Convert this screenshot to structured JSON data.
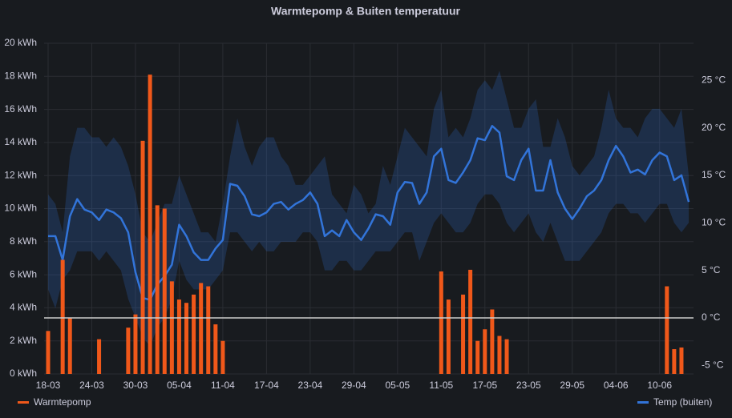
{
  "chart_data": {
    "type": "bar",
    "title": "Warmtepomp & Buiten temperatuur",
    "categories": [
      "18-03",
      null,
      null,
      null,
      null,
      null,
      "24-03",
      null,
      null,
      null,
      null,
      null,
      "30-03",
      null,
      null,
      null,
      null,
      null,
      "05-04",
      null,
      null,
      null,
      null,
      null,
      "11-04",
      null,
      null,
      null,
      null,
      null,
      "17-04",
      null,
      null,
      null,
      null,
      null,
      "23-04",
      null,
      null,
      null,
      null,
      null,
      "29-04",
      null,
      null,
      null,
      null,
      null,
      "05-05",
      null,
      null,
      null,
      null,
      null,
      "11-05",
      null,
      null,
      null,
      null,
      null,
      "17-05",
      null,
      null,
      null,
      null,
      null,
      "23-05",
      null,
      null,
      null,
      null,
      null,
      "29-05",
      null,
      null,
      null,
      null,
      null,
      "04-06",
      null,
      null,
      null,
      null,
      null,
      "10-06",
      null,
      null,
      null,
      null
    ],
    "series": [
      {
        "name": "Warmtepomp",
        "color": "#f0581a",
        "type": "bar",
        "values": [
          2.6,
          0,
          6.9,
          3.4,
          0,
          0,
          0,
          2.1,
          0,
          0,
          0,
          2.8,
          3.6,
          14.1,
          18.1,
          10.2,
          10.0,
          5.6,
          4.5,
          4.3,
          4.8,
          5.5,
          5.3,
          3.0,
          2.0,
          0,
          0,
          0,
          0,
          0,
          0,
          0,
          0,
          0,
          0,
          0,
          0,
          0,
          0,
          0,
          0,
          0,
          0,
          0,
          0,
          0,
          0,
          0,
          0,
          0,
          0,
          0,
          0,
          0,
          6.2,
          4.5,
          0,
          4.8,
          6.3,
          2.0,
          2.7,
          3.9,
          2.3,
          2.1,
          0,
          0,
          0,
          0,
          0,
          0,
          0,
          0,
          0,
          0,
          0,
          0,
          0,
          0,
          0,
          0,
          0,
          0,
          0,
          0,
          0,
          5.3,
          1.5,
          1.6,
          0
        ]
      },
      {
        "name": "Temp (buiten)",
        "color": "#3274d9",
        "type": "line",
        "axis": "y2",
        "values": [
          8.6,
          8.6,
          6.1,
          10.7,
          12.5,
          11.4,
          11.1,
          10.3,
          11.4,
          11.1,
          10.5,
          9.0,
          4.8,
          2.1,
          1.9,
          3.5,
          4.4,
          5.6,
          9.8,
          8.6,
          6.9,
          6.1,
          6.1,
          7.3,
          8.2,
          14.1,
          13.9,
          12.8,
          10.9,
          10.7,
          11.1,
          12.0,
          12.2,
          11.4,
          12.0,
          12.4,
          13.2,
          12.0,
          8.6,
          9.2,
          8.6,
          10.3,
          9.0,
          8.2,
          9.4,
          10.9,
          10.7,
          9.8,
          13.2,
          14.3,
          14.2,
          12.0,
          13.2,
          17.0,
          17.8,
          14.5,
          14.2,
          15.3,
          16.6,
          18.9,
          18.7,
          20.2,
          19.5,
          14.9,
          14.5,
          16.6,
          17.8,
          13.4,
          13.4,
          16.6,
          13.2,
          11.5,
          10.4,
          11.5,
          12.8,
          13.4,
          14.5,
          16.6,
          18.1,
          17.0,
          15.3,
          15.6,
          15.1,
          16.6,
          17.4,
          17.0,
          14.5,
          15.0,
          12.2
        ],
        "range": {
          "upper": [
            13,
            12,
            9,
            17,
            20,
            20,
            19,
            19,
            18,
            19,
            18,
            16,
            13,
            9,
            8,
            10,
            12,
            12,
            15,
            13,
            11,
            9,
            9,
            8,
            12,
            17,
            21,
            18,
            16,
            18,
            19,
            19,
            17,
            16,
            14,
            14,
            15,
            16,
            17,
            13,
            12,
            11,
            14,
            13,
            11,
            12,
            16,
            14,
            17,
            20,
            19,
            18,
            17,
            22,
            24,
            19,
            20,
            19,
            21,
            24,
            25,
            24,
            26,
            23,
            20,
            20,
            22,
            23,
            18,
            18,
            21,
            19,
            16,
            15,
            16,
            17,
            20,
            24,
            21,
            20,
            20,
            19,
            21,
            22,
            22,
            21,
            20,
            22,
            15
          ],
          "lower": [
            3,
            1,
            4,
            5,
            7,
            7,
            7,
            6,
            7,
            6,
            5,
            2,
            0,
            -2,
            -3,
            -1,
            0,
            2,
            6,
            4,
            3,
            3,
            3,
            4,
            5,
            9,
            9,
            8,
            7,
            8,
            7,
            7,
            8,
            8,
            8,
            9,
            9,
            8,
            5,
            5,
            6,
            6,
            5,
            5,
            6,
            7,
            7,
            7,
            8,
            9,
            9,
            6,
            8,
            10,
            11,
            10,
            9,
            9,
            10,
            12,
            13,
            13,
            12,
            10,
            9,
            10,
            11,
            9,
            8,
            10,
            8,
            6,
            6,
            6,
            7,
            8,
            9,
            11,
            12,
            12,
            11,
            11,
            10,
            11,
            12,
            12,
            10,
            9,
            10
          ]
        }
      }
    ],
    "ylim": [
      0,
      20
    ],
    "yticks": [
      {
        "value": 0,
        "label": "0 kWh"
      },
      {
        "value": 2,
        "label": "2 kWh"
      },
      {
        "value": 4,
        "label": "4 kWh"
      },
      {
        "value": 6,
        "label": "6 kWh"
      },
      {
        "value": 8,
        "label": "8 kWh"
      },
      {
        "value": 10,
        "label": "10 kWh"
      },
      {
        "value": 12,
        "label": "12 kWh"
      },
      {
        "value": 14,
        "label": "14 kWh"
      },
      {
        "value": 16,
        "label": "16 kWh"
      },
      {
        "value": 18,
        "label": "18 kWh"
      },
      {
        "value": 20,
        "label": "20 kWh"
      }
    ],
    "y2lim": [
      -5.9,
      28.9
    ],
    "y2ticks": [
      {
        "value": -5,
        "label": "-5 °C"
      },
      {
        "value": 0,
        "label": "0 °C"
      },
      {
        "value": 5,
        "label": "5 °C"
      },
      {
        "value": 10,
        "label": "10 °C"
      },
      {
        "value": 15,
        "label": "15 °C"
      },
      {
        "value": 20,
        "label": "20 °C"
      },
      {
        "value": 25,
        "label": "25 °C"
      }
    ],
    "threshold": 0,
    "grid": true
  }
}
